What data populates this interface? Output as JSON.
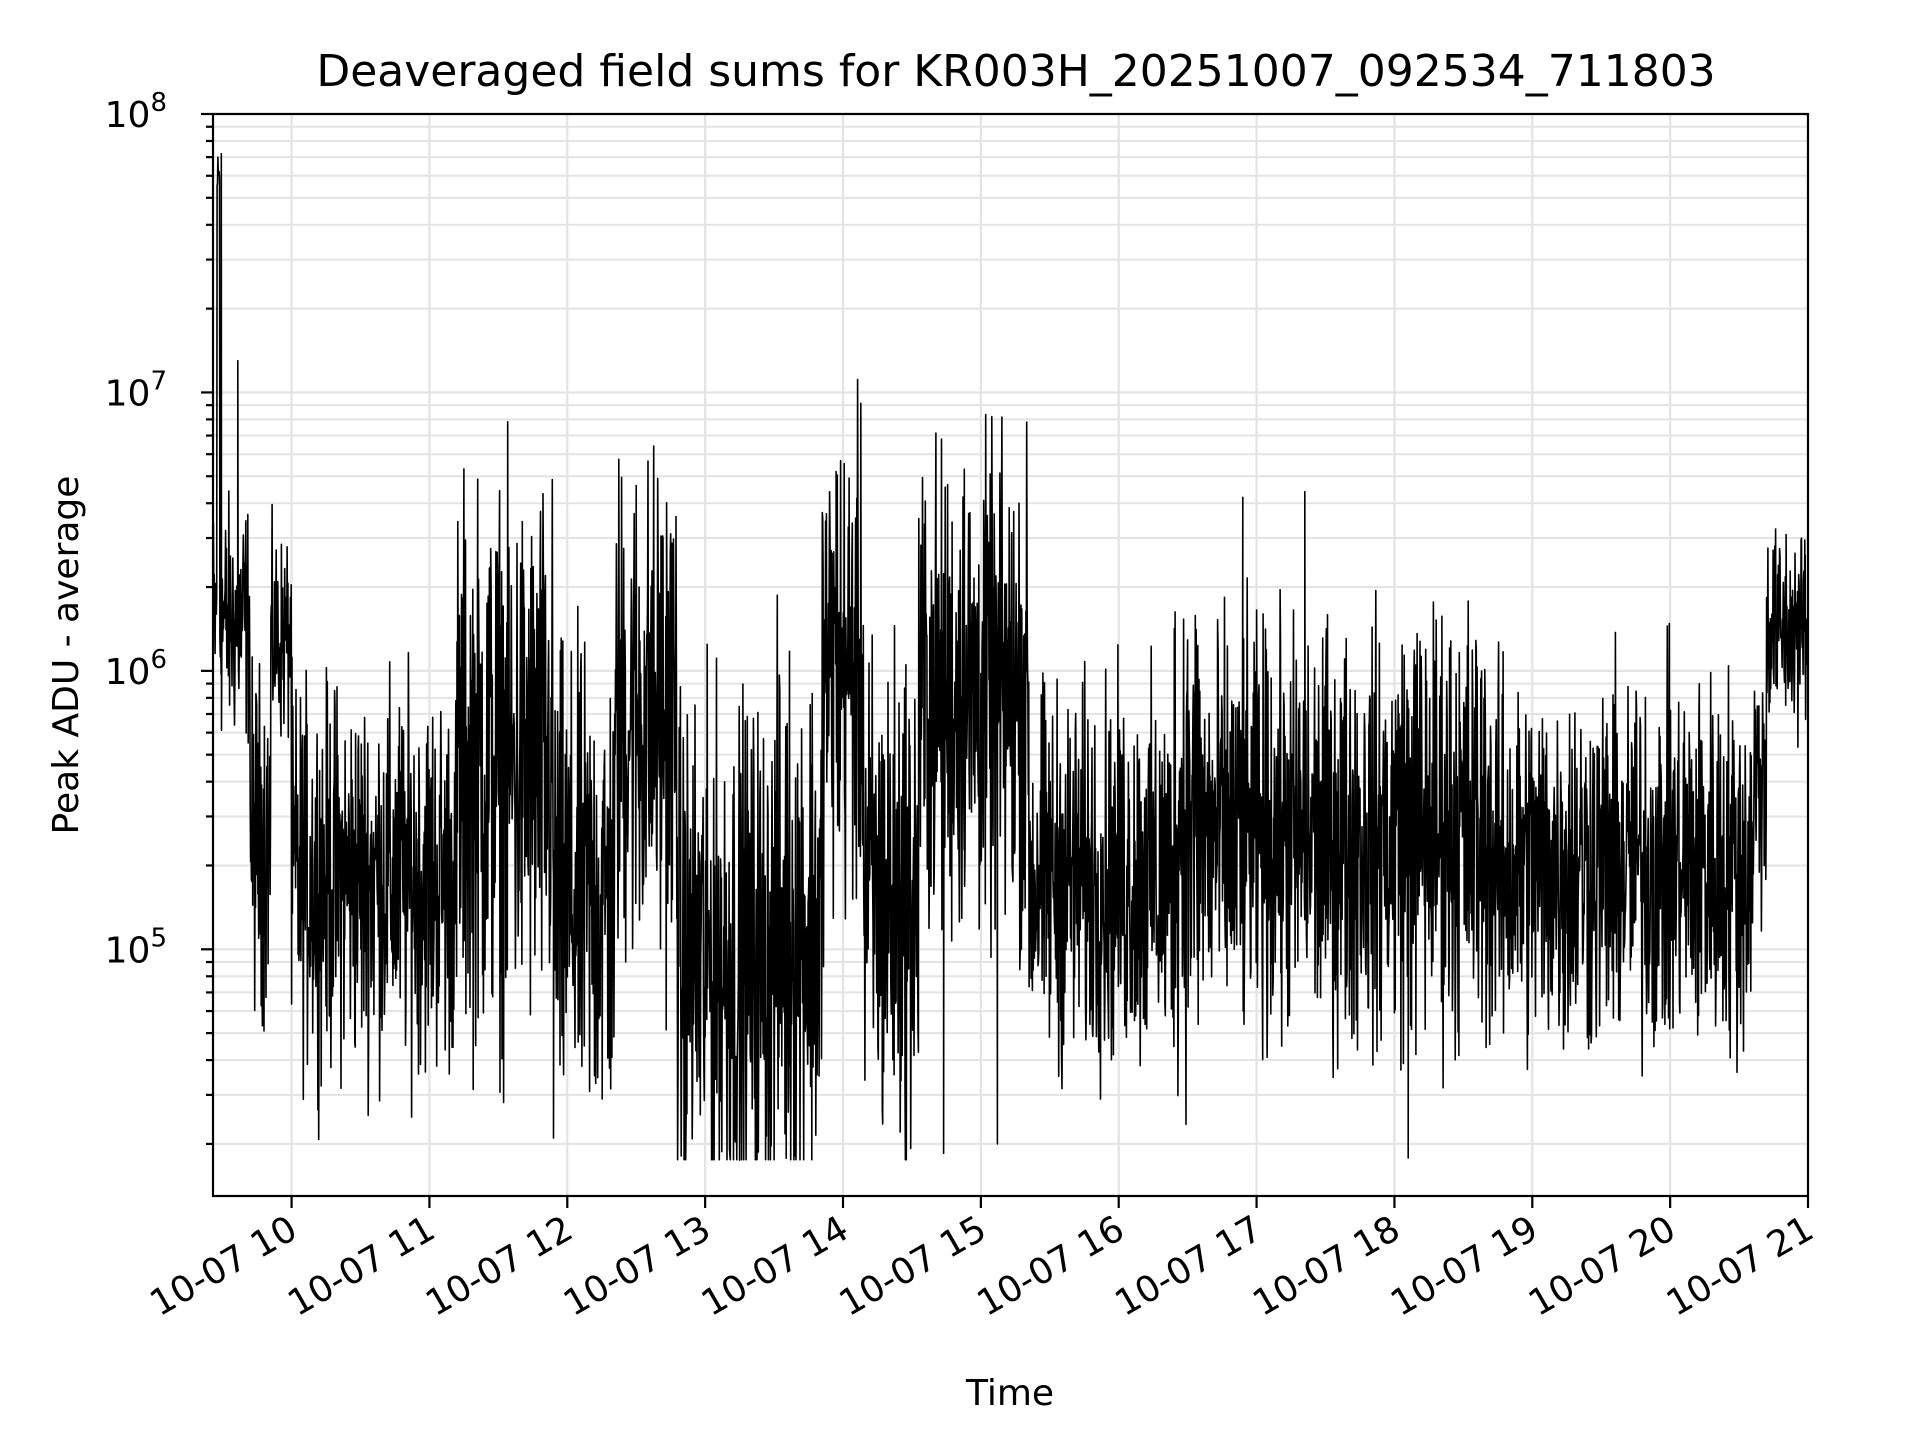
{
  "chart_data": {
    "type": "line",
    "title": "Deaveraged field sums for KR003H_20251007_092534_711803",
    "xlabel": "Time",
    "ylabel": "Peak ADU - average",
    "yscale": "log",
    "ylim": [
      13000,
      100000000
    ],
    "xlim_hours": [
      9.43,
      21.0
    ],
    "grid": true,
    "x_tick_labels": [
      "10-07 10",
      "10-07 11",
      "10-07 12",
      "10-07 13",
      "10-07 14",
      "10-07 15",
      "10-07 16",
      "10-07 17",
      "10-07 18",
      "10-07 19",
      "10-07 20",
      "10-07 21"
    ],
    "x_tick_hours": [
      10,
      11,
      12,
      13,
      14,
      15,
      16,
      17,
      18,
      19,
      20,
      21
    ],
    "y_ticks": [
      {
        "value": 100000,
        "base": "10",
        "exp": "5"
      },
      {
        "value": 1000000,
        "base": "10",
        "exp": "6"
      },
      {
        "value": 10000000,
        "base": "10",
        "exp": "7"
      },
      {
        "value": 100000000,
        "base": "10",
        "exp": "8"
      }
    ],
    "series": [
      {
        "name": "Deaveraged field sum",
        "color": "#000000",
        "segments": [
          {
            "t0": 9.43,
            "t1": 9.46,
            "level": 1500000,
            "spread": 0.35
          },
          {
            "t0": 9.46,
            "t1": 9.48,
            "level": 60000000,
            "spread": 0.08
          },
          {
            "t0": 9.48,
            "t1": 9.7,
            "level": 1500000,
            "spread": 0.35
          },
          {
            "t0": 9.7,
            "t1": 9.85,
            "level": 250000,
            "spread": 0.5
          },
          {
            "t0": 9.85,
            "t1": 10.0,
            "level": 1300000,
            "spread": 0.3
          },
          {
            "t0": 10.0,
            "t1": 11.2,
            "level": 180000,
            "spread": 0.55
          },
          {
            "t0": 11.2,
            "t1": 11.9,
            "level": 450000,
            "spread": 0.8
          },
          {
            "t0": 11.9,
            "t1": 12.35,
            "level": 150000,
            "spread": 0.7
          },
          {
            "t0": 12.35,
            "t1": 12.8,
            "level": 700000,
            "spread": 0.75
          },
          {
            "t0": 12.8,
            "t1": 13.5,
            "level": 90000,
            "spread": 0.75
          },
          {
            "t0": 13.5,
            "t1": 13.85,
            "level": 120000,
            "spread": 0.8
          },
          {
            "t0": 13.85,
            "t1": 14.15,
            "level": 1000000,
            "spread": 0.7
          },
          {
            "t0": 14.15,
            "t1": 14.55,
            "level": 150000,
            "spread": 0.75
          },
          {
            "t0": 14.55,
            "t1": 15.35,
            "level": 800000,
            "spread": 0.7
          },
          {
            "t0": 15.35,
            "t1": 16.4,
            "level": 180000,
            "spread": 0.55
          },
          {
            "t0": 16.4,
            "t1": 16.6,
            "level": 300000,
            "spread": 0.75
          },
          {
            "t0": 16.6,
            "t1": 18.0,
            "level": 250000,
            "spread": 0.6
          },
          {
            "t0": 18.0,
            "t1": 18.7,
            "level": 280000,
            "spread": 0.65
          },
          {
            "t0": 18.7,
            "t1": 20.6,
            "level": 200000,
            "spread": 0.55
          },
          {
            "t0": 20.6,
            "t1": 20.7,
            "level": 400000,
            "spread": 0.4
          },
          {
            "t0": 20.7,
            "t1": 21.0,
            "level": 1400000,
            "spread": 0.3
          }
        ],
        "notable_points": [
          {
            "t": 9.49,
            "v": 72000000
          },
          {
            "t": 9.61,
            "v": 13000000
          },
          {
            "t": 11.9,
            "v": 21000,
            "note": "dip"
          },
          {
            "t": 13.25,
            "v": 17500
          },
          {
            "t": 13.95,
            "v": 5200000
          },
          {
            "t": 14.88,
            "v": 5300000
          },
          {
            "t": 14.73,
            "v": 18500
          },
          {
            "t": 15.12,
            "v": 20000
          },
          {
            "t": 18.1,
            "v": 17800
          },
          {
            "t": 16.9,
            "v": 4200000
          },
          {
            "t": 17.35,
            "v": 4400000
          },
          {
            "t": 20.98,
            "v": 2600000
          }
        ]
      }
    ]
  }
}
